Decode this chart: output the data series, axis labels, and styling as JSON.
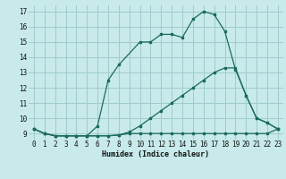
{
  "xlabel": "Humidex (Indice chaleur)",
  "bg_color": "#c8eaea",
  "grid_color": "#a0cccc",
  "line_color": "#1a6b5a",
  "xlim": [
    -0.5,
    23.5
  ],
  "ylim": [
    8.6,
    17.4
  ],
  "xticks": [
    0,
    1,
    2,
    3,
    4,
    5,
    6,
    7,
    8,
    9,
    10,
    11,
    12,
    13,
    14,
    15,
    16,
    17,
    18,
    19,
    20,
    21,
    22,
    23
  ],
  "yticks": [
    9,
    10,
    11,
    12,
    13,
    14,
    15,
    16,
    17
  ],
  "series": [
    {
      "x": [
        0,
        1,
        2,
        3,
        4,
        5,
        6,
        7,
        8,
        9,
        10,
        11,
        12,
        13,
        14,
        15,
        16,
        17,
        18,
        19,
        20,
        21,
        22,
        23
      ],
      "y": [
        9.3,
        9.0,
        8.85,
        8.85,
        8.85,
        8.85,
        8.85,
        8.85,
        8.9,
        9.0,
        9.0,
        9.0,
        9.0,
        9.0,
        9.0,
        9.0,
        9.0,
        9.0,
        9.0,
        9.0,
        9.0,
        9.0,
        9.0,
        9.3
      ]
    },
    {
      "x": [
        0,
        1,
        2,
        3,
        4,
        5,
        6,
        7,
        8,
        9,
        10,
        11,
        12,
        13,
        14,
        15,
        16,
        17,
        18,
        19,
        20,
        21,
        22,
        23
      ],
      "y": [
        9.3,
        9.0,
        8.85,
        8.85,
        8.85,
        8.85,
        8.85,
        8.85,
        8.9,
        9.1,
        9.5,
        10.0,
        10.5,
        11.0,
        11.5,
        12.0,
        12.5,
        13.0,
        13.3,
        13.3,
        11.5,
        10.0,
        9.7,
        9.3
      ]
    },
    {
      "x": [
        0,
        1,
        2,
        3,
        4,
        5,
        6,
        7,
        8,
        10,
        11,
        12,
        13,
        14,
        15,
        16,
        17,
        18,
        19,
        20,
        21,
        22,
        23
      ],
      "y": [
        9.3,
        9.0,
        8.85,
        8.85,
        8.85,
        8.85,
        9.5,
        12.5,
        13.5,
        15.0,
        15.0,
        15.5,
        15.5,
        15.3,
        16.5,
        17.0,
        16.8,
        15.7,
        13.2,
        11.5,
        10.0,
        9.7,
        9.3
      ]
    }
  ]
}
